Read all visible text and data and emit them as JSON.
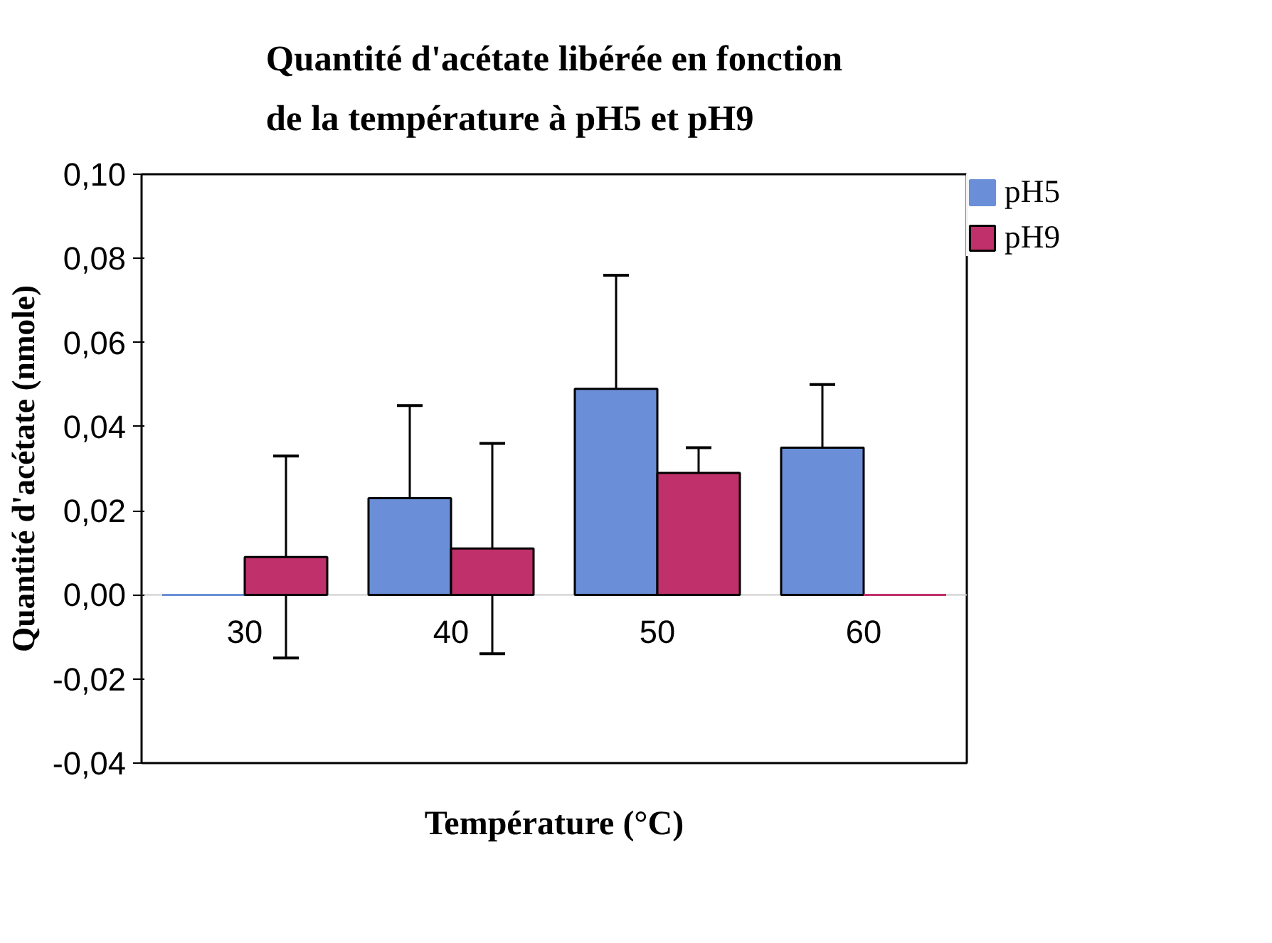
{
  "chart_data": {
    "type": "bar",
    "title": "Quantité d'acétate libérée en fonction\nde la température à pH5 et pH9",
    "xlabel": "Température (°C)",
    "ylabel": "Quantité d'acétate (nmole)",
    "categories": [
      "30",
      "40",
      "50",
      "60"
    ],
    "series": [
      {
        "name": "pH5",
        "color": "#6a8fd8",
        "values": [
          0,
          0.023,
          0.049,
          0.035
        ],
        "errors": [
          null,
          0.022,
          0.027,
          0.015
        ]
      },
      {
        "name": "pH9",
        "color": "#c0306a",
        "values": [
          0.009,
          0.011,
          0.029,
          0
        ],
        "errors": [
          0.024,
          0.025,
          0.006,
          null
        ]
      }
    ],
    "ylim": [
      -0.04,
      0.1
    ],
    "yticks": [
      {
        "value": -0.04,
        "label": "-0,04"
      },
      {
        "value": -0.02,
        "label": "-0,02"
      },
      {
        "value": 0,
        "label": "0,00"
      },
      {
        "value": 0.02,
        "label": "0,02"
      },
      {
        "value": 0.04,
        "label": "0,04"
      },
      {
        "value": 0.06,
        "label": "0,06"
      },
      {
        "value": 0.08,
        "label": "0,08"
      },
      {
        "value": 0.1,
        "label": "0,10"
      }
    ],
    "grid": false,
    "legend": "top right"
  }
}
